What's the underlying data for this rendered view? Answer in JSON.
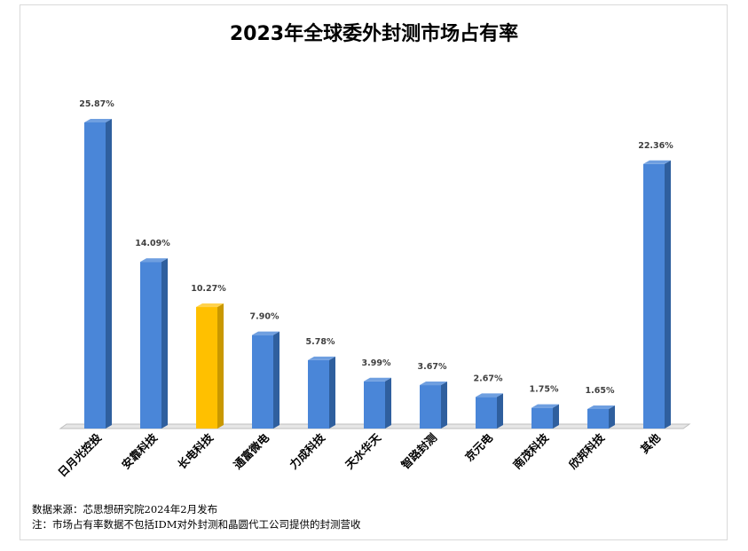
{
  "chart_data": {
    "type": "bar",
    "title": "2023年全球委外封测市场占有率",
    "categories": [
      "日月光控投",
      "安靠科技",
      "长电科技",
      "通富微电",
      "力成科技",
      "天水华天",
      "智路封测",
      "京元电",
      "南茂科技",
      "欣邦科技",
      "其他"
    ],
    "values": [
      25.87,
      14.09,
      10.27,
      7.9,
      5.78,
      3.99,
      3.67,
      2.67,
      1.75,
      1.65,
      22.36
    ],
    "data_labels": [
      "25.87%",
      "14.09%",
      "10.27%",
      "7.90%",
      "5.78%",
      "3.99%",
      "3.67%",
      "2.67%",
      "1.75%",
      "1.65%",
      "22.36%"
    ],
    "highlight_index": 2,
    "colors": {
      "bar": "#4a86d8",
      "bar_side": "#2f5f9e",
      "bar_top": "#6f9fe0",
      "highlight": "#ffc000",
      "highlight_side": "#c99800",
      "highlight_top": "#ffd24d"
    },
    "xlabel": "",
    "ylabel": "",
    "ylim": [
      0,
      27
    ],
    "grid": false,
    "legend": "none"
  },
  "footnotes": {
    "source": "数据来源：芯思想研究院2024年2月发布",
    "note": "注：市场占有率数据不包括IDM对外封测和晶圆代工公司提供的封测营收"
  }
}
